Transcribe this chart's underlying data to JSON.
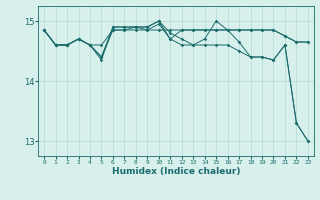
{
  "title": "",
  "xlabel": "Humidex (Indice chaleur)",
  "background_color": "#d8f0ec",
  "grid_color": "#b8ddd8",
  "line_color": "#1a6b6b",
  "xlim": [
    -0.5,
    23.5
  ],
  "ylim": [
    12.75,
    15.25
  ],
  "yticks": [
    13,
    14,
    15
  ],
  "xticks": [
    0,
    1,
    2,
    3,
    4,
    5,
    6,
    7,
    8,
    9,
    10,
    11,
    12,
    13,
    14,
    15,
    16,
    17,
    18,
    19,
    20,
    21,
    22,
    23
  ],
  "series": [
    [
      14.85,
      14.6,
      14.6,
      14.7,
      14.6,
      14.6,
      14.85,
      14.85,
      14.85,
      14.85,
      14.85,
      14.85,
      14.85,
      14.85,
      14.85,
      14.85,
      14.85,
      14.85,
      14.85,
      14.85,
      14.85,
      14.75,
      14.65,
      14.65
    ],
    [
      14.85,
      14.6,
      14.6,
      14.7,
      14.6,
      14.4,
      14.85,
      14.85,
      14.9,
      14.85,
      14.95,
      14.7,
      14.85,
      14.85,
      14.85,
      14.85,
      14.85,
      14.85,
      14.85,
      14.85,
      14.85,
      14.75,
      14.65,
      14.65
    ],
    [
      14.85,
      14.6,
      14.6,
      14.7,
      14.6,
      14.4,
      14.9,
      14.9,
      14.9,
      14.9,
      15.0,
      14.8,
      14.7,
      14.6,
      14.7,
      15.0,
      14.85,
      14.65,
      14.4,
      14.4,
      14.35,
      14.6,
      13.3,
      13.0
    ],
    [
      14.85,
      14.6,
      14.6,
      14.7,
      14.6,
      14.35,
      14.9,
      14.9,
      14.9,
      14.9,
      15.0,
      14.7,
      14.6,
      14.6,
      14.6,
      14.6,
      14.6,
      14.5,
      14.4,
      14.4,
      14.35,
      14.6,
      13.3,
      13.0
    ]
  ]
}
